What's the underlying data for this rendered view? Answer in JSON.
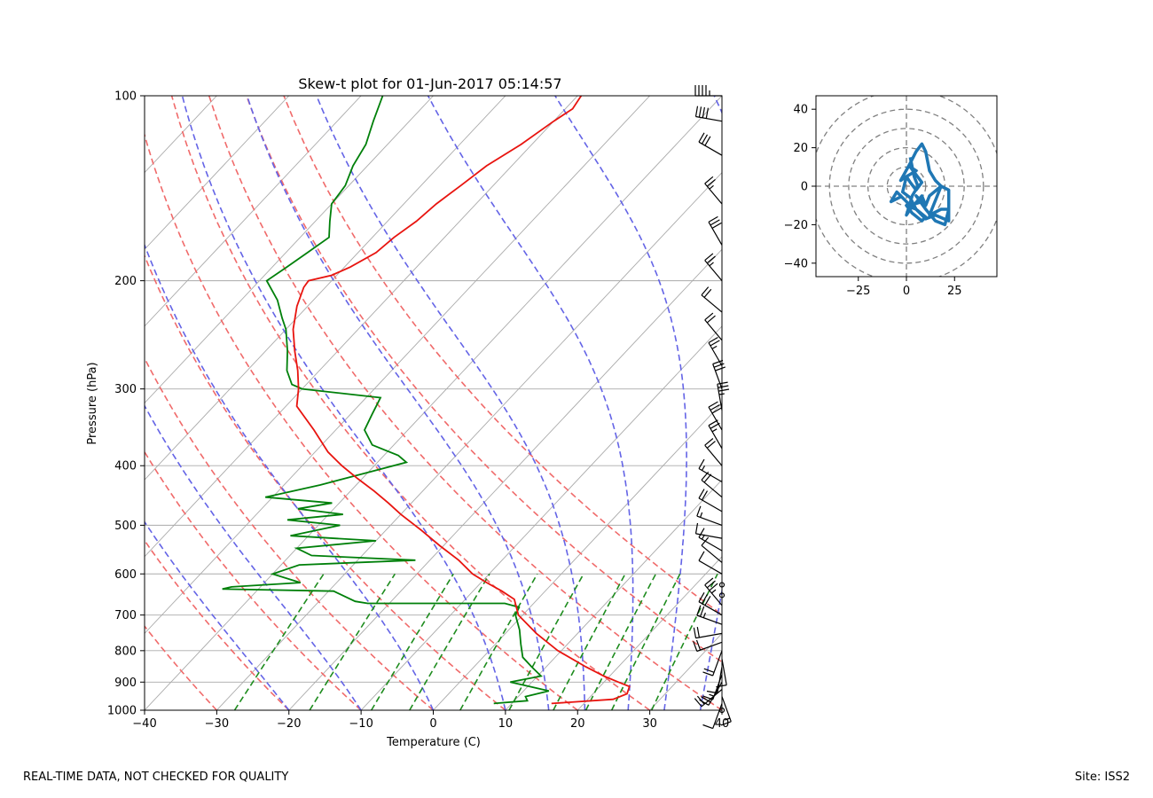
{
  "footer": {
    "left_text": "REAL-TIME DATA, NOT CHECKED FOR QUALITY",
    "right_text": "Site: ISS2"
  },
  "colors": {
    "temperature": "#e8140f",
    "dewpoint": "#00800a",
    "dry_adiabat": "#f06a6a",
    "moist_adiabat": "#6464e6",
    "mixing_ratio": "#1e8c1e",
    "isotherm": "#aaaaaa",
    "hodograph": "#1f77b4",
    "barbs": "#000000"
  },
  "chart_data": [
    {
      "type": "line",
      "name": "skewt",
      "title": "Skew-t plot for 01-Jun-2017 05:14:57",
      "xlabel": "Temperature (C)",
      "ylabel": "Pressure (hPa)",
      "xlim": [
        -40,
        40
      ],
      "ylim": [
        1000,
        100
      ],
      "x_ticks": [
        -40,
        -30,
        -20,
        -10,
        0,
        10,
        20,
        30,
        40
      ],
      "x_tick_labels": [
        "−40",
        "−30",
        "−20",
        "−10",
        "0",
        "10",
        "20",
        "30",
        "40"
      ],
      "y_ticks": [
        100,
        200,
        300,
        400,
        500,
        600,
        700,
        800,
        900,
        1000
      ],
      "y_tick_labels": [
        "100",
        "200",
        "300",
        "400",
        "500",
        "600",
        "700",
        "800",
        "900",
        "1000"
      ],
      "grid": true,
      "series": [
        {
          "name": "Temperature",
          "pressure": [
            975,
            960,
            940,
            915,
            900,
            880,
            850,
            800,
            750,
            700,
            660,
            640,
            620,
            600,
            570,
            540,
            510,
            480,
            460,
            440,
            420,
            400,
            380,
            350,
            320,
            300,
            280,
            260,
            240,
            220,
            205,
            200,
            196,
            190,
            180,
            170,
            160,
            150,
            140,
            130,
            120,
            110,
            105,
            100
          ],
          "temperature": [
            15.5,
            23.5,
            24.7,
            24.1,
            22.0,
            19.2,
            15.5,
            9.5,
            4.3,
            -0.6,
            -3.2,
            -6.0,
            -9.2,
            -12.3,
            -16.0,
            -20.5,
            -25.0,
            -30.0,
            -33.2,
            -36.7,
            -40.6,
            -44.5,
            -48.2,
            -53.0,
            -58.5,
            -60.5,
            -63.0,
            -66.0,
            -69.0,
            -71.5,
            -73.0,
            -73.2,
            -70.7,
            -69.2,
            -67.5,
            -67.0,
            -66.0,
            -65.5,
            -64.5,
            -63.5,
            -61.5,
            -60.0,
            -59.0,
            -59.5
          ]
        },
        {
          "name": "Dew point",
          "pressure": [
            975,
            965,
            950,
            930,
            900,
            880,
            850,
            820,
            780,
            740,
            700,
            680,
            670,
            670,
            665,
            640,
            635,
            630,
            620,
            600,
            580,
            570,
            560,
            545,
            530,
            520,
            500,
            490,
            480,
            470,
            460,
            450,
            430,
            410,
            395,
            385,
            370,
            350,
            330,
            310,
            300,
            295,
            280,
            260,
            240,
            230,
            215,
            200,
            190,
            180,
            170,
            160,
            150,
            140,
            130,
            120,
            110,
            100
          ],
          "dewpoint": [
            7.5,
            11.8,
            11.0,
            13.5,
            7.0,
            10.5,
            8.0,
            5.5,
            3.5,
            1.5,
            -1.0,
            -1.5,
            -4.0,
            -23.0,
            -25.0,
            -29.3,
            -45.0,
            -44.0,
            -35.0,
            -40.0,
            -37.5,
            -22.0,
            -37.0,
            -40.0,
            -30.0,
            -42.5,
            -37.0,
            -45.0,
            -38.0,
            -45.0,
            -41.0,
            -51.0,
            -45.0,
            -40.0,
            -36.0,
            -38.0,
            -43.0,
            -46.0,
            -47.0,
            -48.0,
            -60.0,
            -62.0,
            -64.5,
            -67.0,
            -70.0,
            -72.0,
            -75.0,
            -79.0,
            -78.0,
            -77.0,
            -76.0,
            -78.0,
            -80.0,
            -80.5,
            -82.0,
            -83.0,
            -85.0,
            -87.0
          ]
        }
      ],
      "wind_barbs": {
        "pressure": [
          1000,
          975,
          950,
          925,
          900,
          875,
          850,
          825,
          800,
          775,
          750,
          725,
          700,
          675,
          650,
          625,
          600,
          575,
          550,
          525,
          500,
          475,
          450,
          425,
          400,
          375,
          350,
          325,
          300,
          275,
          250,
          225,
          200,
          175,
          150,
          125,
          110,
          100
        ],
        "speed_kt": [
          0,
          12,
          15,
          18,
          20,
          14,
          10,
          12,
          18,
          22,
          20,
          25,
          30,
          35,
          0,
          0,
          10,
          12,
          14,
          12,
          15,
          20,
          18,
          16,
          22,
          25,
          28,
          35,
          30,
          25,
          22,
          20,
          25,
          30,
          25,
          30,
          40,
          45
        ],
        "direction_deg": [
          0,
          200,
          160,
          230,
          210,
          200,
          190,
          170,
          200,
          250,
          260,
          290,
          300,
          320,
          0,
          0,
          300,
          310,
          300,
          280,
          290,
          300,
          310,
          300,
          320,
          330,
          330,
          350,
          340,
          330,
          320,
          310,
          320,
          330,
          320,
          300,
          280,
          270
        ]
      }
    },
    {
      "type": "line",
      "name": "hodograph",
      "title": "",
      "xlim": [
        -47,
        47
      ],
      "ylim": [
        -47,
        47
      ],
      "x_ticks": [
        -25,
        0,
        25
      ],
      "x_tick_labels": [
        "−25",
        "0",
        "25"
      ],
      "y_ticks": [
        -40,
        -20,
        0,
        20,
        40
      ],
      "y_tick_labels": [
        "−40",
        "−20",
        "0",
        "20",
        "40"
      ],
      "ring_radii": [
        10,
        20,
        30,
        40,
        50
      ],
      "u": [
        -2,
        -8,
        -5,
        2,
        8,
        5,
        10,
        15,
        20,
        22,
        18,
        12,
        18,
        22,
        22,
        15,
        10,
        5,
        0,
        3,
        8,
        10,
        5,
        2,
        -2,
        0,
        5,
        2,
        8,
        5,
        2,
        0,
        -3,
        2,
        5,
        8,
        10,
        12,
        15,
        18,
        12,
        10,
        8,
        2,
        0,
        3,
        6,
        4,
        2
      ],
      "v": [
        -5,
        -8,
        -3,
        -10,
        -8,
        -5,
        -12,
        -18,
        -20,
        -12,
        -12,
        -15,
        0,
        -2,
        -18,
        -15,
        -17,
        -12,
        -10,
        -14,
        -18,
        -16,
        -12,
        -6,
        -3,
        5,
        8,
        10,
        2,
        -2,
        2,
        5,
        3,
        12,
        18,
        22,
        18,
        8,
        3,
        0,
        -5,
        -10,
        -5,
        -12,
        -15,
        -5,
        0,
        5,
        15
      ]
    }
  ]
}
